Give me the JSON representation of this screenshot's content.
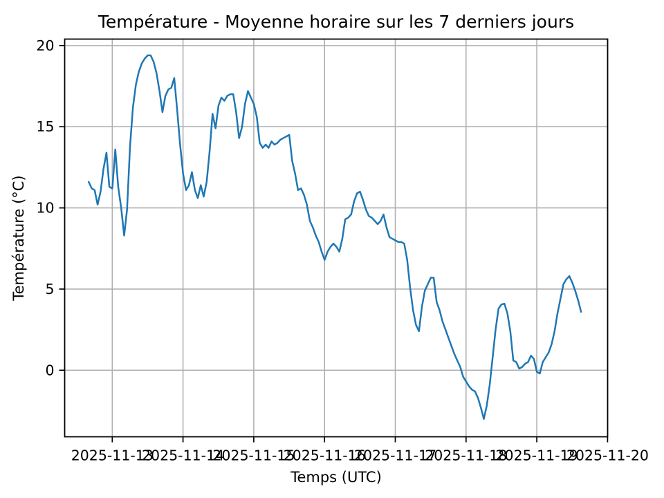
{
  "chart_data": {
    "type": "line",
    "title": "Température - Moyenne horaire sur les 7 derniers jours",
    "xlabel": "Temps (UTC)",
    "ylabel": "Température (°C)",
    "grid": true,
    "legend": "none",
    "ylim": [
      -4.1,
      20.4
    ],
    "y_ticks": [
      0,
      5,
      10,
      15,
      20
    ],
    "y_tick_labels": [
      "0",
      "5",
      "10",
      "15",
      "20"
    ],
    "x_tick_labels": [
      "2025-11-13",
      "2025-11-14",
      "2025-11-15",
      "2025-11-16",
      "2025-11-17",
      "2025-11-18",
      "2025-11-19",
      "2025-11-20"
    ],
    "colors": {
      "line": "#1f77b4",
      "grid": "#b0b0b0",
      "spine": "#000000",
      "text": "#000000",
      "background": "#ffffff"
    },
    "series": [
      {
        "name": "Température moyenne horaire",
        "first_point": "2025-11-12T16:00Z",
        "interval_hours": 1,
        "unit": "°C",
        "values": [
          11.6,
          11.2,
          11.1,
          10.2,
          11.0,
          12.4,
          13.4,
          11.3,
          11.2,
          13.6,
          11.3,
          10.0,
          8.3,
          9.9,
          13.8,
          16.2,
          17.6,
          18.4,
          18.9,
          19.2,
          19.4,
          19.4,
          19.0,
          18.3,
          17.2,
          15.9,
          16.9,
          17.3,
          17.4,
          18.0,
          16.0,
          13.9,
          12.1,
          11.1,
          11.4,
          12.2,
          11.1,
          10.6,
          11.4,
          10.7,
          11.6,
          13.5,
          15.8,
          14.9,
          16.3,
          16.8,
          16.6,
          16.9,
          17.0,
          17.0,
          15.9,
          14.3,
          15.0,
          16.4,
          17.2,
          16.8,
          16.4,
          15.6,
          14.0,
          13.7,
          13.9,
          13.7,
          14.1,
          13.9,
          14.0,
          14.2,
          14.3,
          14.4,
          14.5,
          12.9,
          12.1,
          11.1,
          11.2,
          10.8,
          10.2,
          9.2,
          8.8,
          8.3,
          7.9,
          7.3,
          6.8,
          7.3,
          7.6,
          7.8,
          7.6,
          7.3,
          8.1,
          9.3,
          9.4,
          9.6,
          10.4,
          10.9,
          11.0,
          10.5,
          9.9,
          9.5,
          9.4,
          9.2,
          9.0,
          9.2,
          9.6,
          8.8,
          8.2,
          8.1,
          8.0,
          7.9,
          7.9,
          7.8,
          6.8,
          5.1,
          3.7,
          2.8,
          2.4,
          3.9,
          4.9,
          5.3,
          5.7,
          5.7,
          4.2,
          3.7,
          3.0,
          2.5,
          2.0,
          1.5,
          1.0,
          0.6,
          0.2,
          -0.4,
          -0.7,
          -1.0,
          -1.2,
          -1.3,
          -1.7,
          -2.3,
          -3.0,
          -2.2,
          -0.9,
          0.8,
          2.5,
          3.8,
          4.05,
          4.1,
          3.5,
          2.4,
          0.6,
          0.5,
          0.1,
          0.2,
          0.4,
          0.5,
          0.9,
          0.7,
          -0.1,
          -0.2,
          0.5,
          0.8,
          1.1,
          1.6,
          2.4,
          3.5,
          4.4,
          5.3,
          5.6,
          5.8,
          5.4,
          4.9,
          4.3,
          3.6
        ]
      }
    ]
  }
}
